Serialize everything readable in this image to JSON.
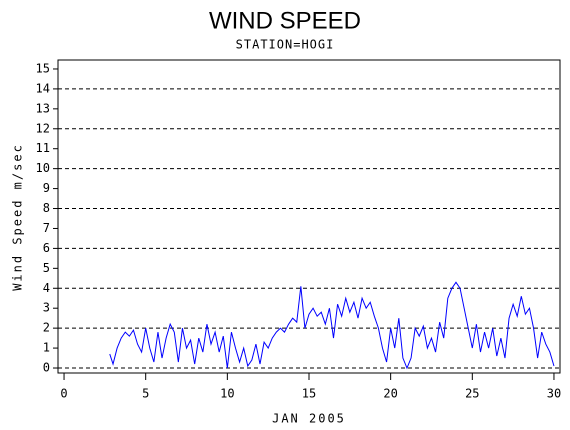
{
  "chart_data": {
    "type": "line",
    "title": "WIND SPEED",
    "subtitle": "STATION=HOGI",
    "x_label": "JAN 2005",
    "y_label": "Wind Speed m/sec",
    "x": [
      2.8,
      3.0,
      3.25,
      3.5,
      3.75,
      4.0,
      4.25,
      4.5,
      4.75,
      5.0,
      5.25,
      5.5,
      5.75,
      6.0,
      6.25,
      6.5,
      6.75,
      7.0,
      7.25,
      7.5,
      7.75,
      8.0,
      8.25,
      8.5,
      8.75,
      9.0,
      9.25,
      9.5,
      9.75,
      10.0,
      10.25,
      10.5,
      10.75,
      11.0,
      11.25,
      11.5,
      11.75,
      12.0,
      12.25,
      12.5,
      12.75,
      13.0,
      13.25,
      13.5,
      13.75,
      14.0,
      14.25,
      14.5,
      14.75,
      15.0,
      15.25,
      15.5,
      15.75,
      16.0,
      16.25,
      16.5,
      16.75,
      17.0,
      17.25,
      17.5,
      17.75,
      18.0,
      18.25,
      18.5,
      18.75,
      19.0,
      19.25,
      19.5,
      19.75,
      20.0,
      20.25,
      20.5,
      20.75,
      21.0,
      21.25,
      21.5,
      21.75,
      22.0,
      22.25,
      22.5,
      22.75,
      23.0,
      23.25,
      23.5,
      23.75,
      24.0,
      24.25,
      24.5,
      24.75,
      25.0,
      25.25,
      25.5,
      25.75,
      26.0,
      26.25,
      26.5,
      26.75,
      27.0,
      27.25,
      27.5,
      27.75,
      28.0,
      28.25,
      28.5,
      28.75,
      29.0,
      29.25,
      29.5,
      29.75,
      30.0
    ],
    "series": [
      {
        "name": "Wind Speed",
        "color": "#0000ff",
        "values": [
          0.7,
          0.2,
          1.0,
          1.5,
          1.8,
          1.6,
          1.9,
          1.2,
          0.8,
          2.0,
          1.0,
          0.3,
          1.8,
          0.5,
          1.5,
          2.2,
          1.8,
          0.3,
          2.0,
          1.0,
          1.4,
          0.2,
          1.5,
          0.8,
          2.2,
          1.2,
          1.8,
          0.8,
          1.6,
          0.0,
          1.8,
          1.0,
          0.3,
          1.0,
          0.1,
          0.4,
          1.2,
          0.2,
          1.3,
          1.0,
          1.5,
          1.8,
          2.0,
          1.8,
          2.2,
          2.5,
          2.3,
          4.1,
          2.0,
          2.7,
          3.0,
          2.6,
          2.8,
          2.2,
          3.0,
          1.5,
          3.2,
          2.6,
          3.5,
          2.8,
          3.3,
          2.5,
          3.5,
          3.0,
          3.3,
          2.6,
          2.0,
          1.0,
          0.3,
          2.0,
          1.0,
          2.5,
          0.5,
          0.0,
          0.5,
          2.0,
          1.6,
          2.1,
          1.0,
          1.5,
          0.8,
          2.3,
          1.5,
          3.5,
          4.0,
          4.3,
          4.0,
          3.0,
          2.0,
          1.0,
          2.2,
          0.8,
          1.8,
          1.0,
          2.0,
          0.6,
          1.5,
          0.5,
          2.5,
          3.2,
          2.6,
          3.6,
          2.7,
          3.0,
          2.0,
          0.5,
          1.8,
          1.2,
          0.8,
          0.1
        ]
      }
    ],
    "xlim": [
      -0.37,
      30.37
    ],
    "xticks": [
      0,
      5,
      10,
      15,
      20,
      25,
      30
    ],
    "ylim": [
      -0.25,
      15.45
    ],
    "yticks": [
      0,
      1,
      2,
      3,
      4,
      5,
      6,
      7,
      8,
      9,
      10,
      11,
      12,
      13,
      14,
      15
    ],
    "grid": true
  }
}
